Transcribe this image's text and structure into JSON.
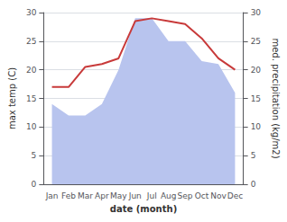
{
  "chart_data": {
    "type": "line",
    "xlabel": "date (month)",
    "ylabel": "max temp (C)",
    "y2label": "med. precipitation (kg/m2)",
    "categories": [
      "Jan",
      "Feb",
      "Mar",
      "Apr",
      "May",
      "Jun",
      "Jul",
      "Aug",
      "Sep",
      "Oct",
      "Nov",
      "Dec"
    ],
    "series": [
      {
        "type": "area",
        "axis": "y2",
        "color": "#b8c4ee",
        "values": [
          14.0,
          12.0,
          12.0,
          14.0,
          20.0,
          29.0,
          29.0,
          25.0,
          25.0,
          21.5,
          21.0,
          16.0
        ]
      },
      {
        "type": "line",
        "color": "#c83a3a",
        "values": [
          17.0,
          17.0,
          20.5,
          21.0,
          22.0,
          28.5,
          29.0,
          28.5,
          28.0,
          25.5,
          22.0,
          20.0
        ]
      }
    ],
    "ylim": [
      0,
      30
    ],
    "yticks": [
      0,
      5,
      10,
      15,
      20,
      25,
      30
    ],
    "y2lim": [
      0,
      30
    ],
    "y2ticks": [
      0,
      5,
      10,
      15,
      20,
      25,
      30
    ],
    "grid": true
  }
}
